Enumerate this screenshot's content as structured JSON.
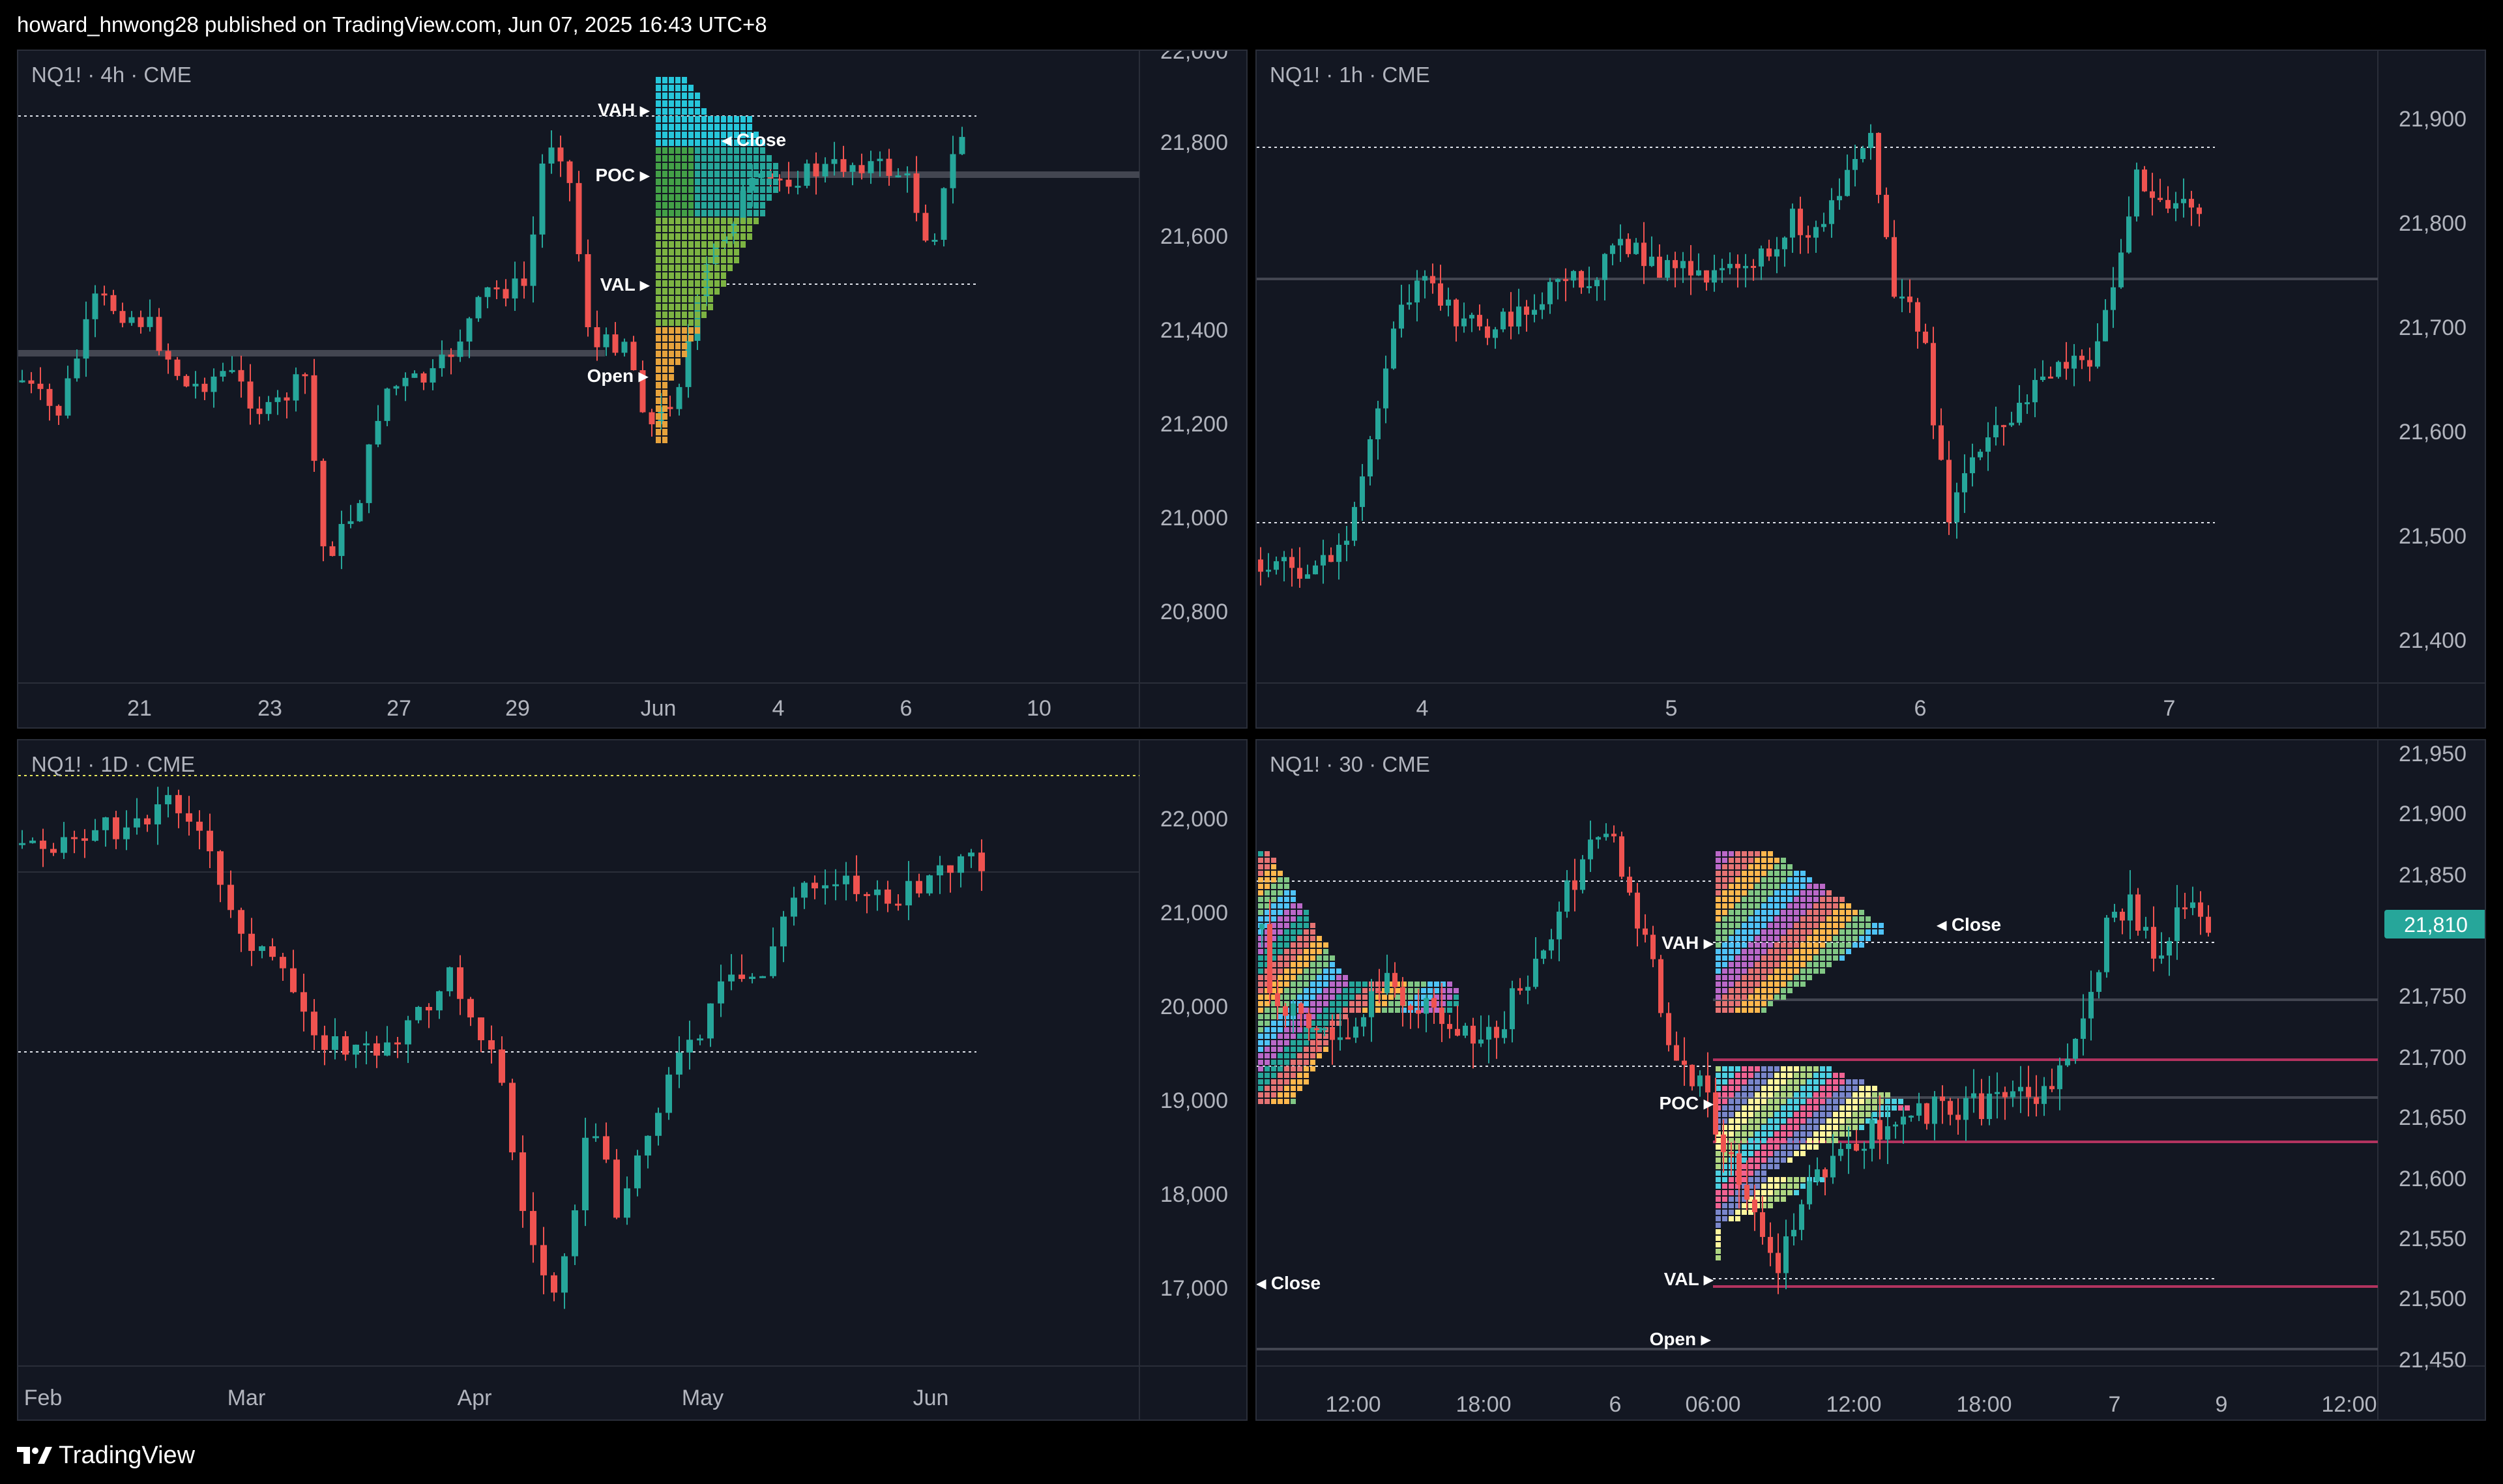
{
  "header": {
    "publish_line": "howard_hnwong28 published on TradingView.com, Jun 07, 2025 16:43 UTC+8"
  },
  "footer": {
    "brand": "TradingView"
  },
  "colors": {
    "up": "#26a69a",
    "down": "#ef5350",
    "bg": "#131722",
    "grid": "#2a2e39",
    "text": "#b2b5be",
    "last_price": "#26a69a",
    "level_line": "#b2335f"
  },
  "panes": [
    {
      "title": "NQ1! · 4h · CME",
      "y_ticks": [
        "22,000",
        "21,800",
        "21,600",
        "21,400",
        "21,200",
        "21,000",
        "20,800"
      ],
      "x_ticks": [
        "21",
        "23",
        "27",
        "29",
        "Jun",
        "4",
        "6",
        "10"
      ],
      "profile_labels": [
        "VAH",
        "POC",
        "VAL",
        "Open",
        "Close"
      ]
    },
    {
      "title": "NQ1! · 1h · CME",
      "y_ticks": [
        "21,900",
        "21,800",
        "21,700",
        "21,600",
        "21,500",
        "21,400"
      ],
      "x_ticks": [
        "4",
        "5",
        "6",
        "7"
      ]
    },
    {
      "title": "NQ1! · 1D · CME",
      "y_ticks": [
        "22,000",
        "21,000",
        "20,000",
        "19,000",
        "18,000",
        "17,000"
      ],
      "x_ticks": [
        "Feb",
        "Mar",
        "Apr",
        "May",
        "Jun"
      ]
    },
    {
      "title": "NQ1! · 30 · CME",
      "y_ticks": [
        "21,950",
        "21,900",
        "21,850",
        "21,750",
        "21,700",
        "21,650",
        "21,600",
        "21,550",
        "21,500",
        "21,450"
      ],
      "x_ticks": [
        "12:00",
        "18:00",
        "6",
        "06:00",
        "12:00",
        "18:00",
        "7",
        "9",
        "12:00"
      ],
      "last_price": "21,810",
      "profile_labels": [
        "VAH",
        "POC",
        "VAL",
        "Open",
        "Close",
        "Close"
      ]
    }
  ]
}
